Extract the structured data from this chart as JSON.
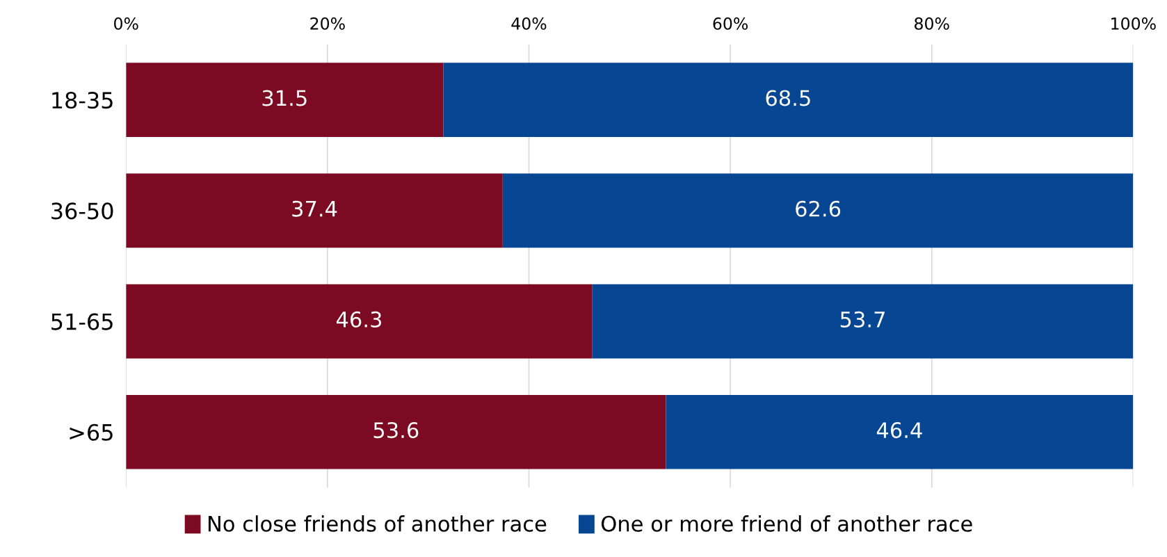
{
  "chart_data": {
    "type": "bar",
    "orientation": "horizontal",
    "stacked": true,
    "categories": [
      "18-35",
      "36-50",
      "51-65",
      ">65"
    ],
    "series": [
      {
        "name": "No close friends of another race",
        "color": "#7b0a22",
        "values": [
          31.5,
          37.4,
          46.3,
          53.6
        ]
      },
      {
        "name": "One or more friend of another race",
        "color": "#074692",
        "values": [
          68.5,
          62.6,
          53.7,
          46.4
        ]
      }
    ],
    "xlim": [
      0,
      100
    ],
    "xticks": [
      {
        "value": 0,
        "label": "0%"
      },
      {
        "value": 20,
        "label": "20%"
      },
      {
        "value": 40,
        "label": "40%"
      },
      {
        "value": 60,
        "label": "60%"
      },
      {
        "value": 80,
        "label": "80%"
      },
      {
        "value": 100,
        "label": "100%"
      }
    ],
    "grid": "x",
    "legend": "bottom",
    "data_labels": true
  }
}
